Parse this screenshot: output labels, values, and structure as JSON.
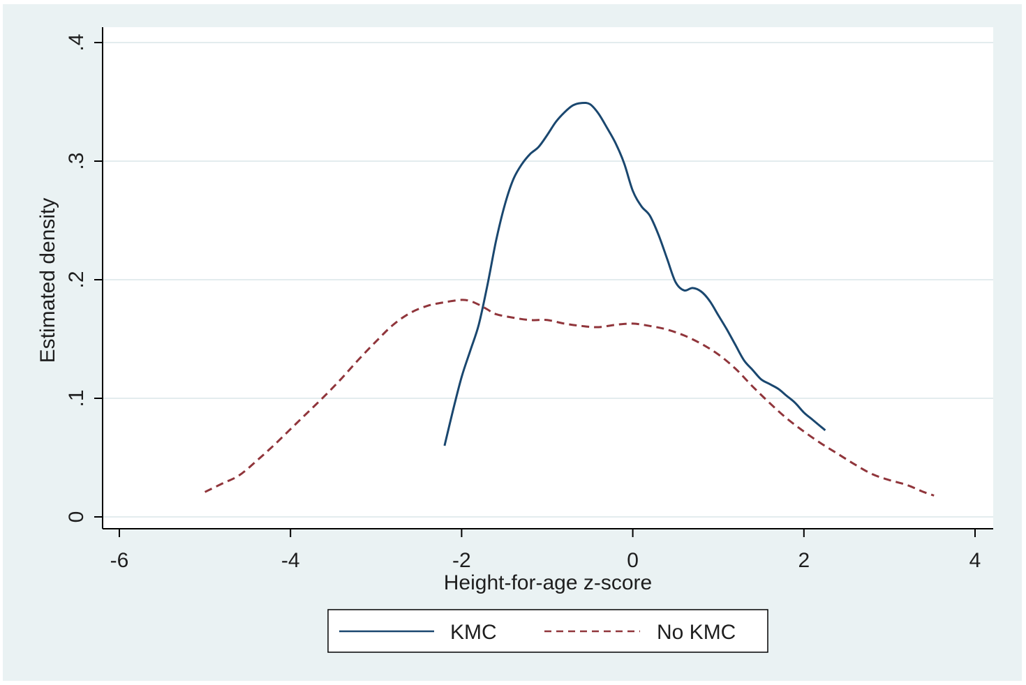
{
  "chart_data": {
    "type": "line",
    "title": "",
    "xlabel": "Height-for-age z-score",
    "ylabel": "Estimated density",
    "xlim": [
      -6,
      4
    ],
    "ylim": [
      0,
      0.4
    ],
    "x_ticks": [
      {
        "value": -6,
        "label": "-6"
      },
      {
        "value": -4,
        "label": "-4"
      },
      {
        "value": -2,
        "label": "-2"
      },
      {
        "value": 0,
        "label": "0"
      },
      {
        "value": 2,
        "label": "2"
      },
      {
        "value": 4,
        "label": "4"
      }
    ],
    "y_ticks": [
      {
        "value": 0,
        "label": "0"
      },
      {
        "value": 0.1,
        "label": ".1"
      },
      {
        "value": 0.2,
        "label": ".2"
      },
      {
        "value": 0.3,
        "label": ".3"
      },
      {
        "value": 0.4,
        "label": ".4"
      }
    ],
    "grid": true,
    "legend_position": "bottom",
    "series": [
      {
        "name": "KMC",
        "color": "#1a476f",
        "style": "solid",
        "x": [
          -2.2,
          -2.1,
          -2.0,
          -1.9,
          -1.8,
          -1.7,
          -1.6,
          -1.5,
          -1.4,
          -1.3,
          -1.2,
          -1.1,
          -1.0,
          -0.9,
          -0.8,
          -0.7,
          -0.6,
          -0.5,
          -0.4,
          -0.3,
          -0.2,
          -0.1,
          0.0,
          0.1,
          0.2,
          0.3,
          0.4,
          0.5,
          0.6,
          0.7,
          0.8,
          0.9,
          1.0,
          1.1,
          1.2,
          1.3,
          1.4,
          1.5,
          1.6,
          1.7,
          1.8,
          1.9,
          2.0,
          2.1,
          2.2,
          2.25
        ],
        "y": [
          0.06,
          0.09,
          0.118,
          0.14,
          0.162,
          0.195,
          0.232,
          0.262,
          0.284,
          0.297,
          0.306,
          0.312,
          0.322,
          0.333,
          0.341,
          0.347,
          0.349,
          0.348,
          0.34,
          0.328,
          0.315,
          0.298,
          0.275,
          0.262,
          0.254,
          0.238,
          0.218,
          0.198,
          0.191,
          0.193,
          0.19,
          0.182,
          0.17,
          0.158,
          0.145,
          0.132,
          0.124,
          0.116,
          0.112,
          0.108,
          0.102,
          0.096,
          0.088,
          0.082,
          0.076,
          0.073
        ]
      },
      {
        "name": "No KMC",
        "color": "#90353b",
        "style": "dashed",
        "x": [
          -5.0,
          -4.8,
          -4.6,
          -4.4,
          -4.2,
          -4.0,
          -3.8,
          -3.6,
          -3.4,
          -3.2,
          -3.0,
          -2.8,
          -2.6,
          -2.4,
          -2.2,
          -2.0,
          -1.9,
          -1.8,
          -1.7,
          -1.6,
          -1.4,
          -1.2,
          -1.0,
          -0.8,
          -0.6,
          -0.4,
          -0.2,
          0.0,
          0.2,
          0.4,
          0.6,
          0.8,
          1.0,
          1.2,
          1.4,
          1.6,
          1.8,
          2.0,
          2.2,
          2.4,
          2.6,
          2.8,
          3.0,
          3.2,
          3.4,
          3.52
        ],
        "y": [
          0.021,
          0.028,
          0.035,
          0.047,
          0.06,
          0.074,
          0.088,
          0.102,
          0.117,
          0.133,
          0.148,
          0.162,
          0.172,
          0.178,
          0.181,
          0.183,
          0.182,
          0.179,
          0.175,
          0.171,
          0.168,
          0.166,
          0.166,
          0.163,
          0.161,
          0.16,
          0.162,
          0.163,
          0.161,
          0.158,
          0.153,
          0.146,
          0.137,
          0.125,
          0.11,
          0.096,
          0.083,
          0.072,
          0.062,
          0.053,
          0.044,
          0.036,
          0.031,
          0.027,
          0.021,
          0.018
        ]
      }
    ]
  }
}
